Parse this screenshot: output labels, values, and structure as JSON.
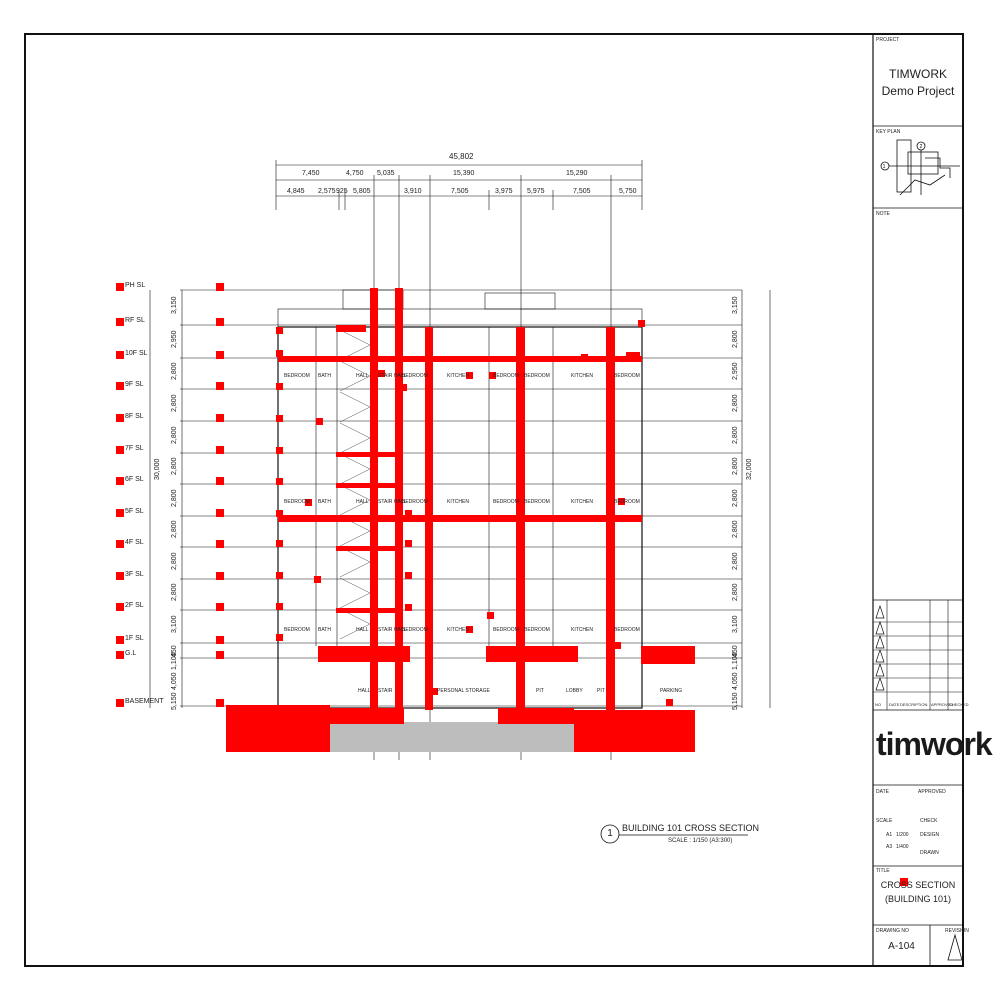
{
  "project": {
    "label": "PROJECT",
    "name": "TIMWORK",
    "sub": "Demo Project"
  },
  "keyplan": {
    "label": "KEY PLAN",
    "note_label": "NOTE",
    "markers": [
      "1",
      "2"
    ]
  },
  "revisions": {
    "header": [
      "NO",
      "DATE",
      "DESCRIPTION",
      "APPROVED",
      "CHECKED"
    ],
    "count": 6
  },
  "logo": {
    "text": "timwork"
  },
  "info": {
    "date_label": "DATE",
    "approved_label": "APPROVED",
    "scale_label": "SCALE",
    "a1_label": "A1",
    "a3_label": "A3",
    "a1_scale": "1/200",
    "a3_scale": "1/400",
    "check_label": "CHECK",
    "design_label": "DESIGN",
    "drawn_label": "DRAWN",
    "title_label": "TITLE",
    "title_line1": "CROSS SECTION",
    "title_line2": "(BUILDING 101)",
    "drawing_no_label": "DRAWING NO",
    "revision_label": "REVISION",
    "drawing_no": "A-104"
  },
  "section": {
    "callout_number": "1",
    "title": "BUILDING 101 CROSS SECTION",
    "scale_note": "SCALE : 1/150 (A3:300)"
  },
  "levels": [
    "PH SL",
    "RF SL",
    "10F SL",
    "9F SL",
    "8F SL",
    "7F SL",
    "6F SL",
    "5F SL",
    "4F SL",
    "3F SL",
    "2F SL",
    "1F SL",
    "G.L",
    "BASEMENT"
  ],
  "dims_top": {
    "total": "45,802",
    "row2": [
      "7,450",
      "4,750",
      "5,035",
      "15,390",
      "15,290"
    ],
    "row3": [
      "4,845",
      "2,575",
      "925",
      "5,805",
      "3,910",
      "7,505",
      "3,975",
      "5,975",
      "7,505",
      "5,750"
    ]
  },
  "dims_left": {
    "floors": [
      "3,150",
      "2,950",
      "2,800",
      "2,800",
      "2,800",
      "2,800",
      "2,800",
      "2,800",
      "2,800",
      "2,800",
      "3,100",
      "450",
      "1,100",
      "4,050",
      "5,150"
    ],
    "overall": "30,000"
  },
  "dims_right": {
    "floors": [
      "3,150",
      "2,800",
      "2,950",
      "2,800",
      "2,800",
      "2,800",
      "2,800",
      "2,800",
      "2,800",
      "2,800",
      "3,100",
      "450",
      "1,100",
      "4,050",
      "5,150"
    ],
    "overall": "32,000"
  },
  "rooms": {
    "row_10f": [
      "BEDROOM",
      "BATH",
      "HALL",
      "STAIR HALL",
      "BEDROOM",
      "KITCHEN",
      "BEDROOM",
      "BEDROOM",
      "KITCHEN",
      "BEDROOM"
    ],
    "row_6f": [
      "BEDROOM",
      "BATH",
      "HALL",
      "STAIR HALL",
      "BEDROOM",
      "KITCHEN",
      "BEDROOM",
      "BEDROOM",
      "KITCHEN",
      "BEDROOM"
    ],
    "row_2f": [
      "BEDROOM",
      "BATH",
      "HALL",
      "STAIR HALL",
      "BEDROOM",
      "KITCHEN",
      "BEDROOM",
      "BEDROOM",
      "KITCHEN",
      "BEDROOM"
    ],
    "basement": [
      "HALL",
      "STAIR",
      "PERSONAL STORAGE",
      "PIT",
      "LOBBY",
      "PIT",
      "PARKING"
    ]
  },
  "colors": {
    "highlight": "#ff0000",
    "line": "#111111",
    "fill_gray": "#bdbdbd"
  }
}
